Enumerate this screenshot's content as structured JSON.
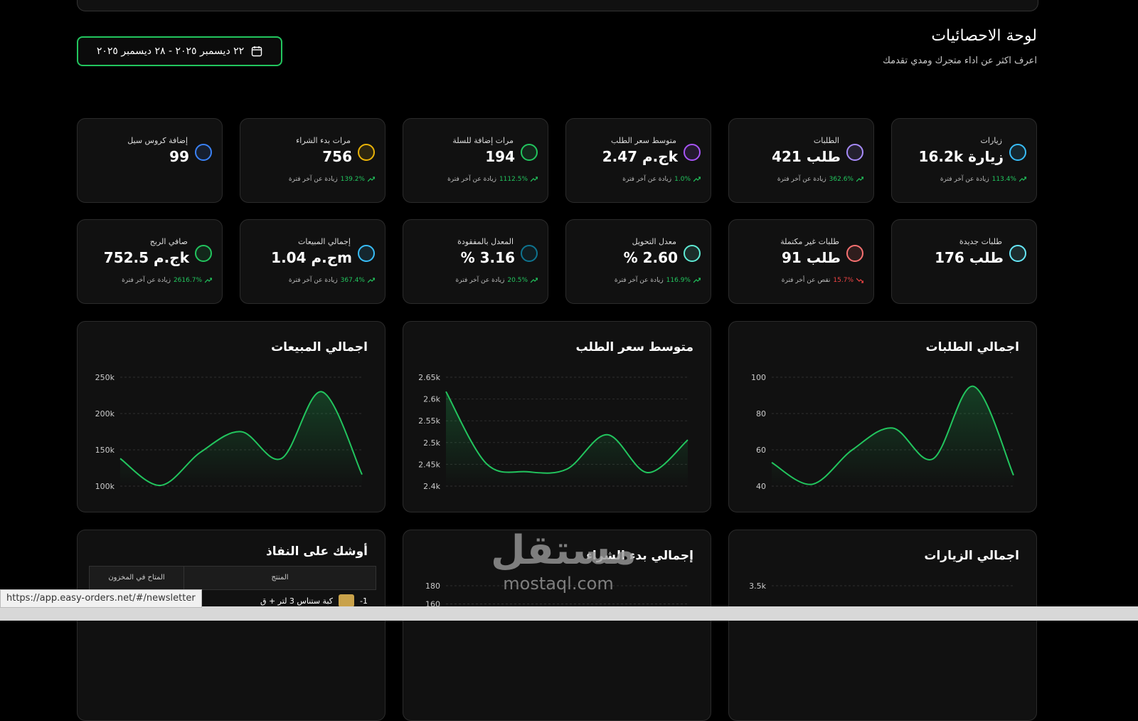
{
  "header": {
    "title": "لوحة الاحصائيات",
    "subtitle": "اعرف اكثر عن اداء متجرك ومدي تقدمك",
    "date_range": "٢٢ ديسمبر ٢٠٢٥ - ٢٨ ديسمبر ٢٠٢٥"
  },
  "stats": [
    {
      "label": "زيارات",
      "value": "16.2k زيارة",
      "change": "113.4%",
      "change_note": "زيادة عن آخر فترة",
      "trend": "up",
      "color": "#38bdf8"
    },
    {
      "label": "الطلبات",
      "value": "421 طلب",
      "change": "362.6%",
      "change_note": "زيادة عن آخر فترة",
      "trend": "up",
      "color": "#a78bfa"
    },
    {
      "label": "متوسط سعر الطلب",
      "value": "ج.م 2.47k",
      "change": "1.0%",
      "change_note": "زيادة عن آخر فترة",
      "trend": "up",
      "color": "#a855f7"
    },
    {
      "label": "مرات إضافة للسلة",
      "value": "194",
      "change": "1112.5%",
      "change_note": "زيادة عن آخر فترة",
      "trend": "up",
      "color": "#22c55e"
    },
    {
      "label": "مرات بدء الشراء",
      "value": "756",
      "change": "139.2%",
      "change_note": "زيادة عن آخر فترة",
      "trend": "up",
      "color": "#eab308"
    },
    {
      "label": "إضافة كروس سيل",
      "value": "99",
      "color": "#3b82f6"
    },
    {
      "label": "طلبات جديدة",
      "value": "176 طلب",
      "color": "#67e8f9"
    },
    {
      "label": "طلبات غير مكتملة",
      "value": "91 طلب",
      "change": "15.7%",
      "change_note": "نقص عن أخر فترة",
      "trend": "down",
      "color": "#f87171"
    },
    {
      "label": "معدل التحويل",
      "value": "% 2.60",
      "change": "116.9%",
      "change_note": "زيادة عن آخر فترة",
      "trend": "up",
      "color": "#5eead4"
    },
    {
      "label": "المعدل بالمفقودة",
      "value": "% 3.16",
      "change": "20.5%",
      "change_note": "زيادة عن آخر فترة",
      "trend": "up",
      "color": "#0e7490"
    },
    {
      "label": "إجمالي المبيعات",
      "value": "ج.م 1.04m",
      "change": "367.4%",
      "change_note": "زيادة عن آخر فترة",
      "trend": "up",
      "color": "#38bdf8"
    },
    {
      "label": "صافي الربح",
      "value": "ج.م 752.5k",
      "change": "2616.7%",
      "change_note": "زيادة عن آخر فترة",
      "trend": "up",
      "color": "#22c55e"
    }
  ],
  "charts": [
    {
      "type": "line",
      "title": "اجمالي الطلبات",
      "color": "#22c55e",
      "values": [
        53,
        41,
        60,
        72,
        55,
        95,
        46
      ],
      "ylim": [
        40,
        100
      ],
      "yticks": [
        40,
        60,
        80,
        100
      ],
      "grid": true
    },
    {
      "type": "line",
      "title": "متوسط سعر الطلب",
      "color": "#22c55e",
      "values": [
        2617,
        2452,
        2433,
        2439,
        2518,
        2431,
        2506
      ],
      "ylim": [
        2400,
        2650
      ],
      "yticks": [
        {
          "value": 2400,
          "label": "2.4k"
        },
        {
          "value": 2450,
          "label": "2.45k"
        },
        {
          "value": 2500,
          "label": "2.5k"
        },
        {
          "value": 2550,
          "label": "2.55k"
        },
        {
          "value": 2600,
          "label": "2.6k"
        },
        {
          "value": 2650,
          "label": "2.65k"
        }
      ],
      "grid": true
    },
    {
      "type": "line",
      "title": "اجمالي المبيعات",
      "color": "#22c55e",
      "values": [
        138000,
        101000,
        147000,
        175000,
        138000,
        230000,
        116000
      ],
      "ylim": [
        100000,
        250000
      ],
      "yticks": [
        {
          "value": 100000,
          "label": "100k"
        },
        {
          "value": 150000,
          "label": "150k"
        },
        {
          "value": 200000,
          "label": "200k"
        },
        {
          "value": 250000,
          "label": "250k"
        }
      ],
      "grid": true
    },
    {
      "type": "line",
      "title": "اجمالي الزيارات",
      "color": "#22c55e",
      "ylim": [
        1000,
        3500
      ],
      "yticks": [
        {
          "value": 3500,
          "label": "3.5k"
        }
      ],
      "grid": true
    },
    {
      "type": "line",
      "title": "إجمالي بدء الشراء",
      "color": "#22c55e",
      "ylim": [
        60,
        180
      ],
      "yticks": [
        160,
        180
      ],
      "grid": true
    }
  ],
  "low_stock": {
    "title": "أوشك على النفاذ",
    "columns": [
      "المنتج",
      "المتاح في المخزون"
    ],
    "rows": [
      {
        "index": "1-",
        "product": "كبة ستناس 3 لتر + ق"
      }
    ]
  },
  "watermark": {
    "arabic": "مستقل",
    "latin": "mostaql.com"
  },
  "status_url": "https://app.easy-orders.net/#/newsletter"
}
